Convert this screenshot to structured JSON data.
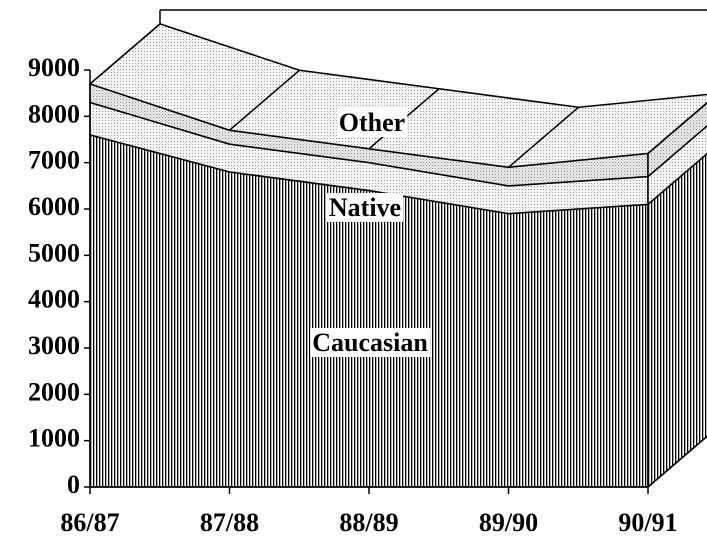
{
  "chart_data": {
    "type": "area3d",
    "categories": [
      "86/87",
      "87/88",
      "88/89",
      "89/90",
      "90/91"
    ],
    "series": [
      {
        "name": "Caucasian",
        "values": [
          7600,
          6800,
          6400,
          5900,
          6100
        ]
      },
      {
        "name": "Native",
        "values": [
          700,
          600,
          600,
          600,
          600
        ]
      },
      {
        "name": "Other",
        "values": [
          400,
          300,
          300,
          400,
          500
        ]
      }
    ],
    "stacked": true,
    "ylim": [
      0,
      9000
    ],
    "yticks": [
      0,
      1000,
      2000,
      3000,
      4000,
      5000,
      6000,
      7000,
      8000,
      9000
    ]
  }
}
